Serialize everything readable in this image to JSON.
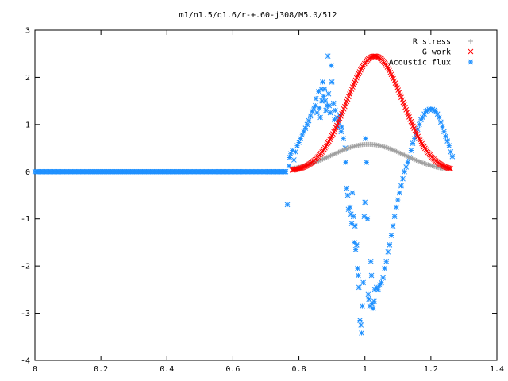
{
  "chart_data": {
    "type": "scatter",
    "title": "m1/n1.5/q1.6/r-+.60-j308/M5.0/512",
    "xlabel": "",
    "ylabel": "",
    "xlim": [
      0,
      1.4
    ],
    "ylim": [
      -4,
      3
    ],
    "x_ticks": [
      0,
      0.2,
      0.4,
      0.6,
      0.8,
      1,
      1.2,
      1.4
    ],
    "x_tick_labels": [
      "0",
      "0.2",
      "0.4",
      "0.6",
      "0.8",
      "1",
      "1.2",
      "1.4"
    ],
    "y_ticks": [
      -4,
      -3,
      -2,
      -1,
      0,
      1,
      2,
      3
    ],
    "y_tick_labels": [
      "-4",
      "-3",
      "-2",
      "-1",
      "0",
      "1",
      "2",
      "3"
    ],
    "grid": false,
    "legend_position": "top-right",
    "series": [
      {
        "name": "R stress",
        "marker": "plus",
        "color": "#a0a0a0",
        "curve": {
          "kind": "gaussian",
          "amplitude": 0.58,
          "center": 1.01,
          "width": 0.11,
          "x_start": 0.78,
          "x_end": 1.25,
          "step": 0.004
        },
        "points": [
          [
            0.78,
            0.0
          ],
          [
            0.8,
            0.02
          ],
          [
            0.85,
            0.1
          ],
          [
            0.9,
            0.28
          ],
          [
            0.95,
            0.45
          ],
          [
            1.0,
            0.57
          ],
          [
            1.05,
            0.54
          ],
          [
            1.1,
            0.4
          ],
          [
            1.15,
            0.24
          ],
          [
            1.2,
            0.1
          ],
          [
            1.25,
            0.03
          ]
        ]
      },
      {
        "name": "G work",
        "marker": "cross",
        "color": "#ff0000",
        "curve": {
          "kind": "gaussian",
          "amplitude": 2.45,
          "center": 1.03,
          "width": 0.085,
          "x_start": 0.78,
          "x_end": 1.26,
          "step": 0.003
        },
        "points": [
          [
            0.78,
            0.0
          ],
          [
            0.8,
            0.02
          ],
          [
            0.85,
            0.28
          ],
          [
            0.9,
            0.95
          ],
          [
            0.95,
            1.7
          ],
          [
            1.0,
            2.3
          ],
          [
            1.03,
            2.45
          ],
          [
            1.05,
            2.4
          ],
          [
            1.1,
            1.75
          ],
          [
            1.15,
            0.85
          ],
          [
            1.2,
            0.2
          ],
          [
            1.25,
            0.01
          ]
        ]
      },
      {
        "name": "Acoustic flux",
        "marker": "star",
        "color": "#1e90ff",
        "zero_line": {
          "x_start": 0.0,
          "x_end": 0.76,
          "step": 0.004,
          "y": 0
        },
        "points": [
          [
            0.765,
            -0.7
          ],
          [
            0.77,
            0.12
          ],
          [
            0.772,
            0.3
          ],
          [
            0.775,
            0.38
          ],
          [
            0.78,
            0.45
          ],
          [
            0.785,
            0.25
          ],
          [
            0.79,
            0.42
          ],
          [
            0.795,
            0.55
          ],
          [
            0.8,
            0.62
          ],
          [
            0.805,
            0.7
          ],
          [
            0.81,
            0.78
          ],
          [
            0.815,
            0.85
          ],
          [
            0.82,
            0.92
          ],
          [
            0.825,
            1.0
          ],
          [
            0.83,
            1.08
          ],
          [
            0.835,
            1.18
          ],
          [
            0.84,
            1.28
          ],
          [
            0.845,
            1.35
          ],
          [
            0.85,
            1.4
          ],
          [
            0.852,
            1.55
          ],
          [
            0.855,
            1.25
          ],
          [
            0.86,
            1.7
          ],
          [
            0.862,
            1.35
          ],
          [
            0.865,
            1.15
          ],
          [
            0.868,
            1.75
          ],
          [
            0.87,
            1.5
          ],
          [
            0.872,
            1.9
          ],
          [
            0.875,
            1.6
          ],
          [
            0.878,
            1.75
          ],
          [
            0.88,
            1.5
          ],
          [
            0.882,
            1.3
          ],
          [
            0.885,
            1.4
          ],
          [
            0.888,
            2.45
          ],
          [
            0.89,
            1.65
          ],
          [
            0.892,
            1.4
          ],
          [
            0.895,
            1.25
          ],
          [
            0.898,
            2.25
          ],
          [
            0.9,
            1.9
          ],
          [
            0.905,
            1.45
          ],
          [
            0.908,
            1.1
          ],
          [
            0.91,
            1.3
          ],
          [
            0.915,
            1.15
          ],
          [
            0.918,
            0.95
          ],
          [
            0.92,
            1.05
          ],
          [
            0.925,
            1.2
          ],
          [
            0.928,
            0.85
          ],
          [
            0.93,
            0.95
          ],
          [
            0.935,
            0.7
          ],
          [
            0.94,
            0.5
          ],
          [
            0.942,
            0.2
          ],
          [
            0.945,
            -0.35
          ],
          [
            0.948,
            -0.5
          ],
          [
            0.95,
            -0.8
          ],
          [
            0.955,
            -0.75
          ],
          [
            0.958,
            -0.9
          ],
          [
            0.96,
            -1.1
          ],
          [
            0.962,
            -0.45
          ],
          [
            0.965,
            -0.95
          ],
          [
            0.968,
            -1.5
          ],
          [
            0.97,
            -1.15
          ],
          [
            0.972,
            -1.65
          ],
          [
            0.975,
            -1.55
          ],
          [
            0.978,
            -2.05
          ],
          [
            0.98,
            -2.2
          ],
          [
            0.982,
            -2.45
          ],
          [
            0.985,
            -3.15
          ],
          [
            0.988,
            -3.25
          ],
          [
            0.99,
            -3.42
          ],
          [
            0.992,
            -2.85
          ],
          [
            0.995,
            -2.35
          ],
          [
            0.998,
            -0.95
          ],
          [
            1.0,
            -0.65
          ],
          [
            1.002,
            0.7
          ],
          [
            1.005,
            0.2
          ],
          [
            1.008,
            -1.0
          ],
          [
            1.01,
            -2.6
          ],
          [
            1.012,
            -2.7
          ],
          [
            1.015,
            -2.85
          ],
          [
            1.018,
            -1.9
          ],
          [
            1.02,
            -2.2
          ],
          [
            1.022,
            -2.8
          ],
          [
            1.025,
            -2.9
          ],
          [
            1.028,
            -2.75
          ],
          [
            1.03,
            -2.5
          ],
          [
            1.035,
            -2.45
          ],
          [
            1.04,
            -2.5
          ],
          [
            1.045,
            -2.4
          ],
          [
            1.05,
            -2.35
          ],
          [
            1.055,
            -2.25
          ],
          [
            1.06,
            -2.05
          ],
          [
            1.065,
            -1.9
          ],
          [
            1.07,
            -1.7
          ],
          [
            1.075,
            -1.55
          ],
          [
            1.08,
            -1.35
          ],
          [
            1.085,
            -1.15
          ],
          [
            1.09,
            -0.95
          ],
          [
            1.095,
            -0.75
          ],
          [
            1.1,
            -0.6
          ],
          [
            1.105,
            -0.45
          ],
          [
            1.11,
            -0.3
          ],
          [
            1.115,
            -0.15
          ],
          [
            1.12,
            0.0
          ],
          [
            1.125,
            0.1
          ],
          [
            1.13,
            0.2
          ],
          [
            1.135,
            0.3
          ],
          [
            1.14,
            0.45
          ],
          [
            1.145,
            0.6
          ],
          [
            1.15,
            0.7
          ],
          [
            1.155,
            0.8
          ],
          [
            1.16,
            0.9
          ],
          [
            1.165,
            1.0
          ],
          [
            1.17,
            1.1
          ],
          [
            1.175,
            1.15
          ],
          [
            1.18,
            1.22
          ],
          [
            1.185,
            1.28
          ],
          [
            1.19,
            1.3
          ],
          [
            1.195,
            1.32
          ],
          [
            1.2,
            1.33
          ],
          [
            1.205,
            1.32
          ],
          [
            1.21,
            1.3
          ],
          [
            1.215,
            1.27
          ],
          [
            1.22,
            1.22
          ],
          [
            1.225,
            1.15
          ],
          [
            1.23,
            1.05
          ],
          [
            1.235,
            0.95
          ],
          [
            1.24,
            0.85
          ],
          [
            1.245,
            0.75
          ],
          [
            1.25,
            0.65
          ],
          [
            1.255,
            0.55
          ],
          [
            1.26,
            0.42
          ],
          [
            1.265,
            0.32
          ]
        ]
      }
    ]
  }
}
